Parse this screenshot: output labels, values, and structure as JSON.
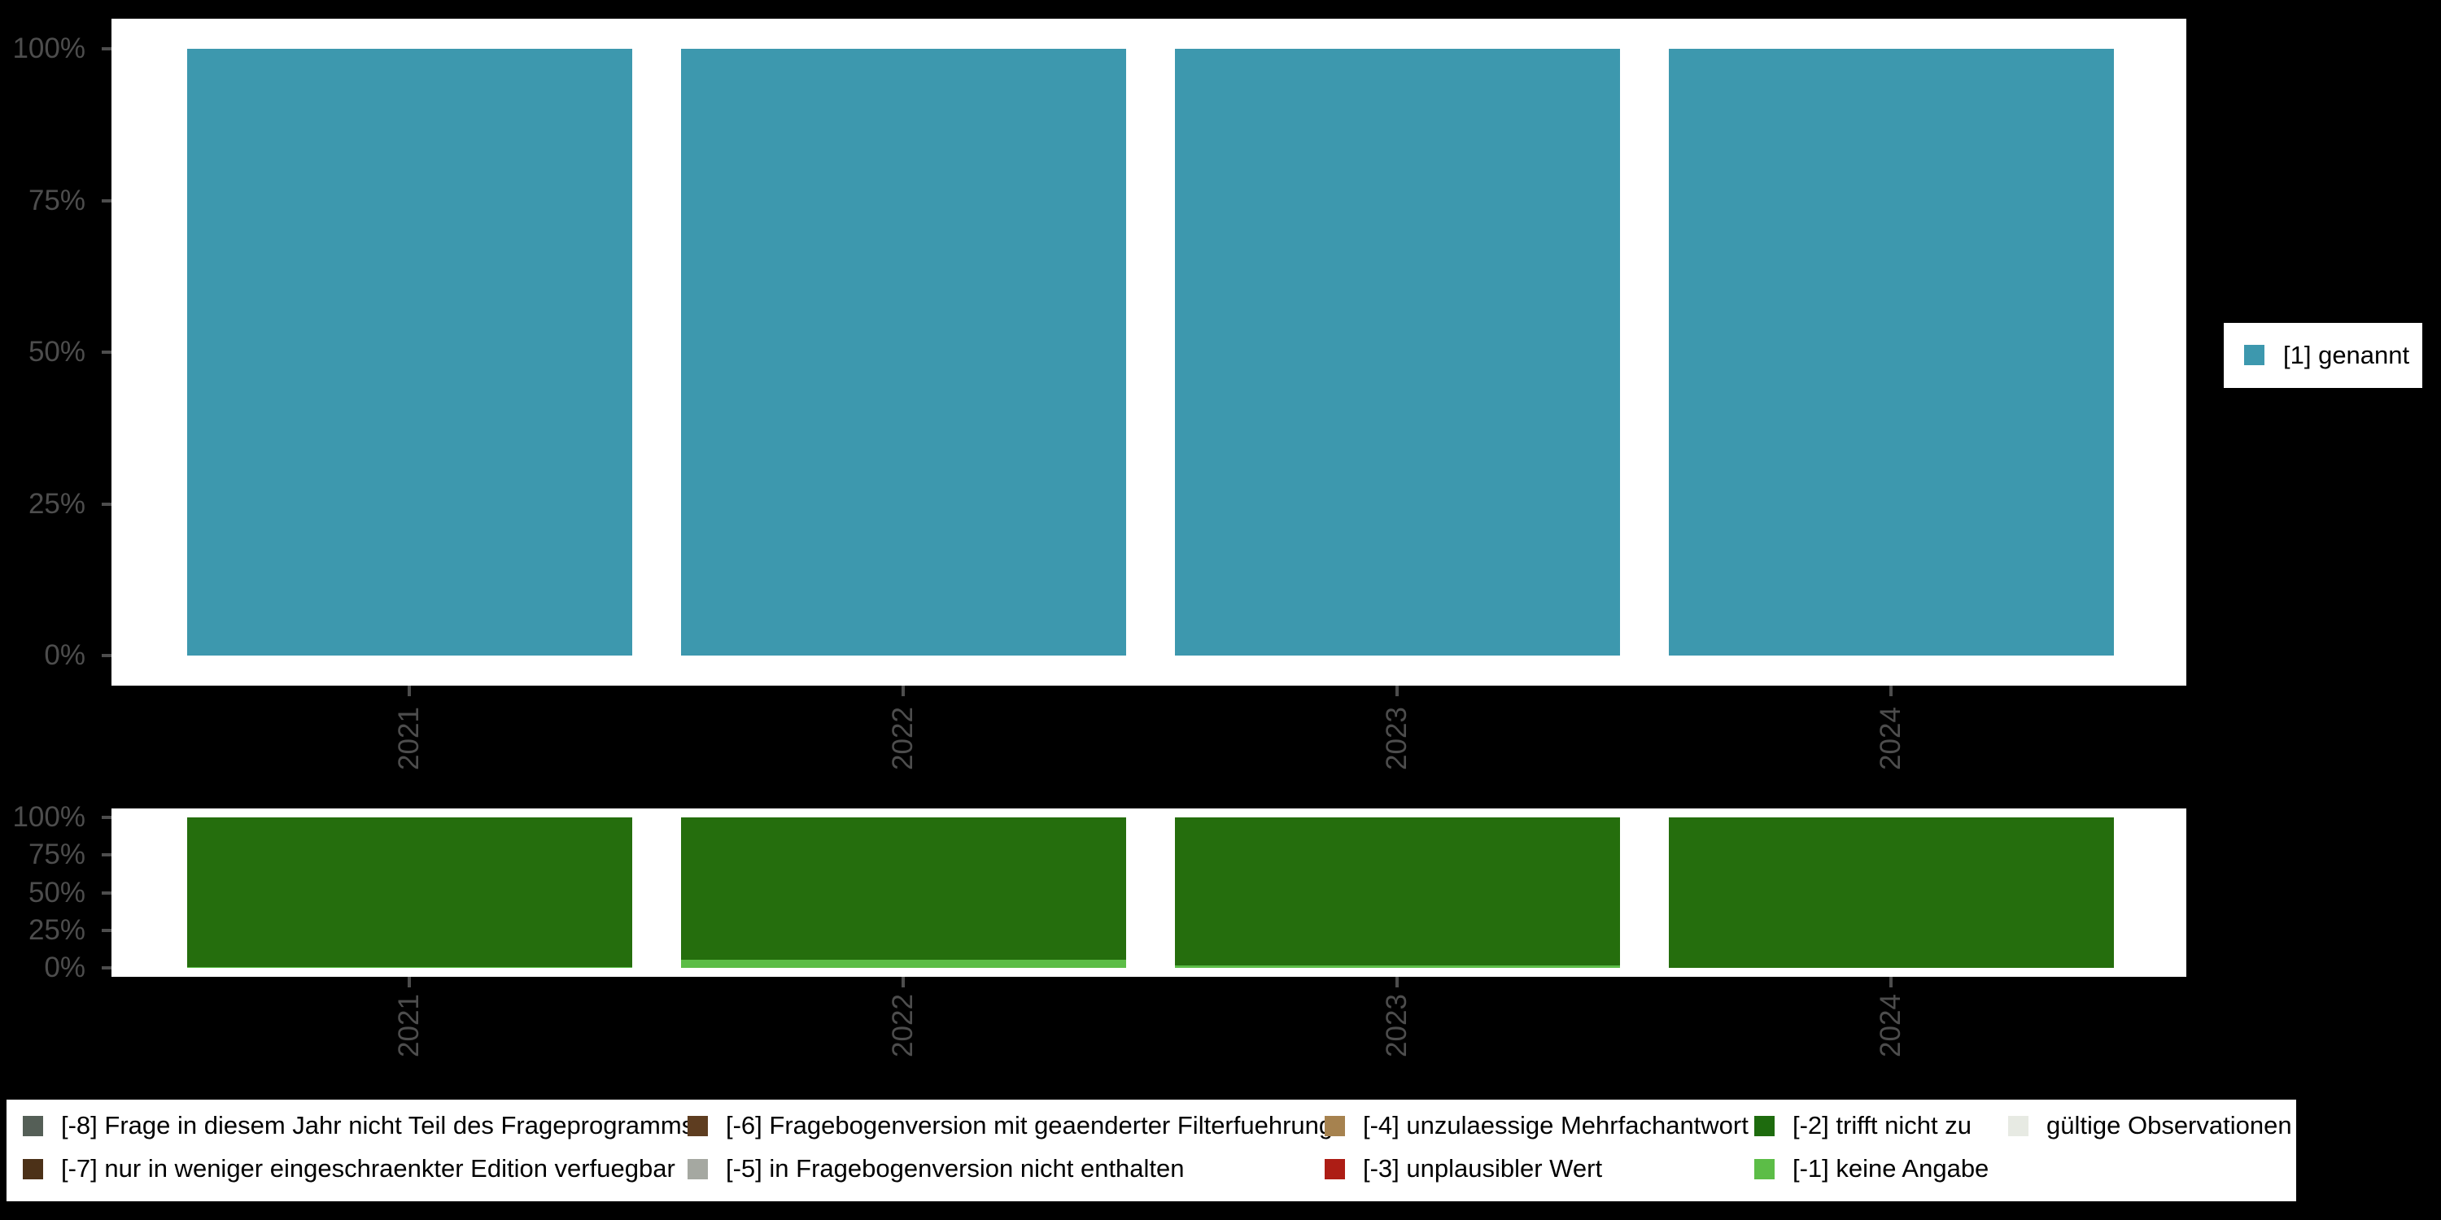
{
  "colors": {
    "background": "#000000",
    "panel": "#ffffff",
    "axis_text": "#4d4d4d",
    "genannt": "#3d98ae",
    "trifft_nicht_zu": "#256e0d",
    "keine_angabe": "#5cbd47"
  },
  "chart_data": [
    {
      "id": "value-distribution",
      "type": "bar",
      "stacked": true,
      "orientation": "vertical",
      "categories": [
        "2021",
        "2022",
        "2023",
        "2024"
      ],
      "series": [
        {
          "name": "[1] genannt",
          "color": "#3d98ae",
          "values": [
            100,
            100,
            100,
            100
          ]
        }
      ],
      "title": "",
      "xlabel": "",
      "ylabel": "",
      "ylim": [
        0,
        100
      ],
      "y_tick_labels": [
        "0%",
        "25%",
        "50%",
        "75%",
        "100%"
      ],
      "grid": false,
      "legend_position": "right"
    },
    {
      "id": "missing-values-distribution",
      "type": "bar",
      "stacked": true,
      "orientation": "vertical",
      "categories": [
        "2021",
        "2022",
        "2023",
        "2024"
      ],
      "series": [
        {
          "name": "[-2] trifft nicht zu",
          "color": "#256e0d",
          "values": [
            99.2,
            94.6,
            98.3,
            100
          ]
        },
        {
          "name": "[-1] keine Angabe",
          "color": "#5cbd47",
          "values": [
            0.8,
            5.4,
            1.7,
            0
          ]
        }
      ],
      "title": "",
      "xlabel": "",
      "ylabel": "",
      "ylim": [
        0,
        100
      ],
      "y_tick_labels": [
        "0%",
        "25%",
        "50%",
        "75%",
        "100%"
      ],
      "grid": false,
      "legend_position": "bottom"
    }
  ],
  "top_legend": {
    "items": [
      {
        "label": "[1] genannt",
        "color": "#3d98ae"
      }
    ]
  },
  "bottom_legend": {
    "items": [
      {
        "label": "[-8] Frage in diesem Jahr nicht Teil des Frageprogramms",
        "color": "#555f57"
      },
      {
        "label": "[-7] nur in weniger eingeschraenkter Edition verfuegbar",
        "color": "#4c3118"
      },
      {
        "label": "[-6] Fragebogenversion mit geaenderter Filterfuehrung",
        "color": "#5e3d20"
      },
      {
        "label": "[-5] in Fragebogenversion nicht enthalten",
        "color": "#a5a8a1"
      },
      {
        "label": "[-4] unzulaessige Mehrfachantwort",
        "color": "#a6824f"
      },
      {
        "label": "[-3] unplausibler Wert",
        "color": "#ad1d15"
      },
      {
        "label": "[-2] trifft nicht zu",
        "color": "#1e6b0e"
      },
      {
        "label": "[-1] keine Angabe",
        "color": "#5cbd47"
      },
      {
        "label": "gültige Observationen",
        "color": "#e7eae3"
      }
    ]
  }
}
